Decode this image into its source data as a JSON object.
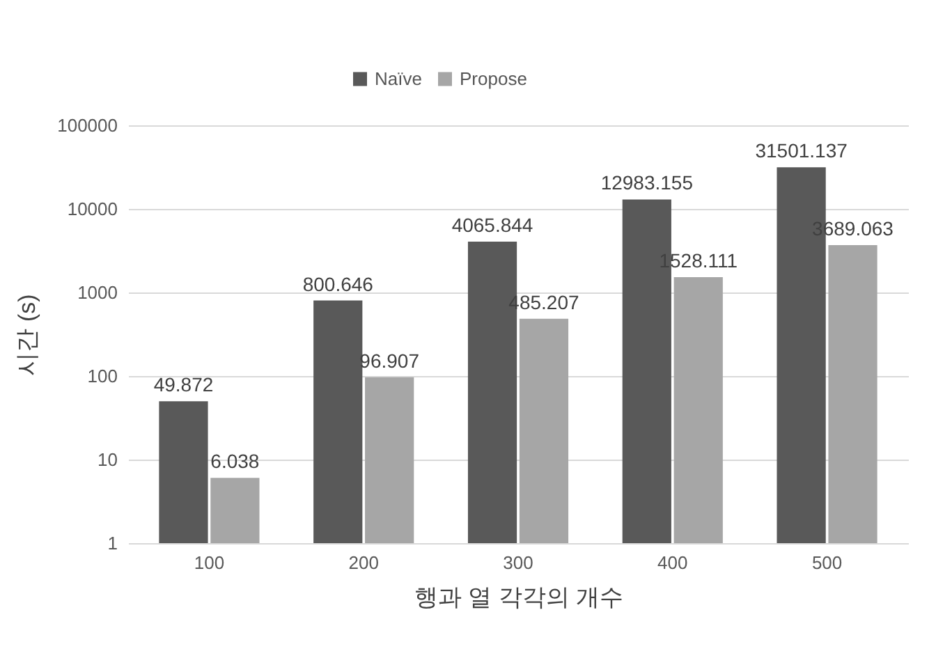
{
  "chart_data": {
    "type": "bar",
    "xlabel": "행과 열 각각의 개수",
    "ylabel": "시간 (s)",
    "categories": [
      "100",
      "200",
      "300",
      "400",
      "500"
    ],
    "series": [
      {
        "name": "Naïve",
        "color": "#595959",
        "values": [
          49.872,
          800.646,
          4065.844,
          12983.155,
          31501.137
        ]
      },
      {
        "name": "Propose",
        "color": "#a6a6a6",
        "values": [
          6.038,
          96.907,
          485.207,
          1528.111,
          3689.063
        ]
      }
    ],
    "log": true,
    "ylim": [
      1,
      100000
    ],
    "yticks": [
      1,
      10,
      100,
      1000,
      10000,
      100000
    ],
    "grid": "y",
    "legend": "top",
    "data_labels": true
  }
}
